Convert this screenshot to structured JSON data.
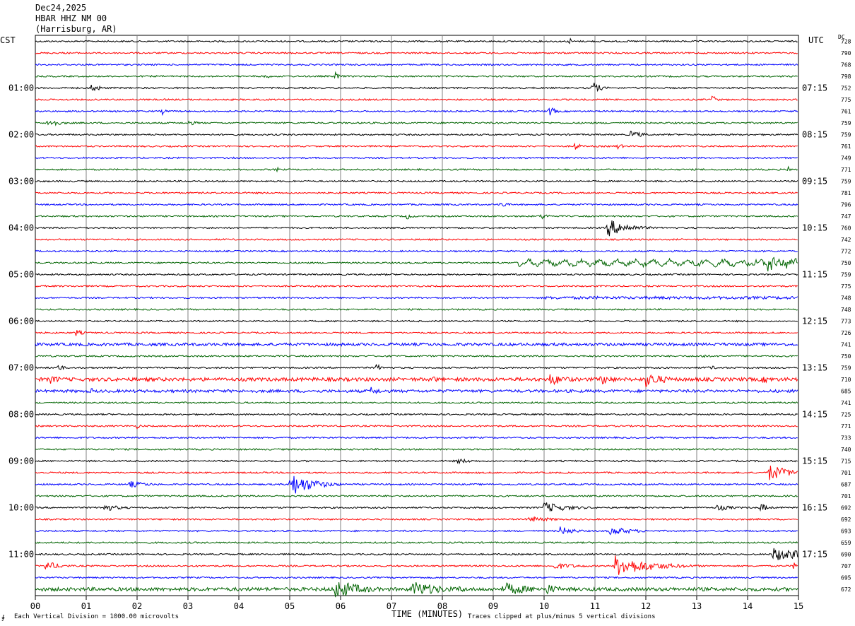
{
  "header": {
    "date": "Dec24,2025",
    "station": "HBAR HHZ NM 00",
    "location": "(Harrisburg, AR)"
  },
  "labels": {
    "left_tz": "CST",
    "right_tz": "UTC",
    "dc": "DC",
    "x_axis": "TIME (MINUTES)",
    "scale_note": "Each Vertical Division = 1000.00 microvolts",
    "clip_note": "Traces clipped at plus/minus 5 vertical divisions",
    "corner": "∳"
  },
  "colors": {
    "black": "#000000",
    "red": "#ff0000",
    "blue": "#0000ff",
    "green": "#006400",
    "grid": "#808080"
  },
  "chart_data": {
    "type": "line",
    "title": "HBAR HHZ NM 00",
    "xlabel": "TIME (MINUTES)",
    "xlim": [
      0,
      15
    ],
    "x_ticks": [
      "00",
      "01",
      "02",
      "03",
      "04",
      "05",
      "06",
      "07",
      "08",
      "09",
      "10",
      "11",
      "12",
      "13",
      "14",
      "15"
    ],
    "color_cycle": [
      "black",
      "red",
      "blue",
      "green"
    ],
    "left_hour_labels": [
      "01:00",
      "02:00",
      "03:00",
      "04:00",
      "05:00",
      "06:00",
      "07:00",
      "08:00",
      "09:00",
      "10:00",
      "11:00"
    ],
    "right_hour_labels": [
      "07:15",
      "08:15",
      "09:15",
      "10:15",
      "11:15",
      "12:15",
      "13:15",
      "14:15",
      "15:15",
      "16:15",
      "17:15"
    ],
    "dc_offsets": [
      728,
      790,
      768,
      798,
      752,
      775,
      761,
      759,
      759,
      761,
      749,
      771,
      759,
      781,
      796,
      747,
      760,
      742,
      772,
      750,
      759,
      775,
      748,
      748,
      773,
      726,
      741,
      750,
      759,
      710,
      685,
      741,
      725,
      771,
      733,
      740,
      715,
      701,
      687,
      701,
      692,
      692,
      693,
      659,
      690,
      707,
      695,
      672
    ],
    "events": [
      {
        "line": 0,
        "min": 10.5,
        "amp": 6,
        "dur": 0.05
      },
      {
        "line": 3,
        "min": 4.5,
        "amp": 5,
        "dur": 0.1
      },
      {
        "line": 3,
        "min": 5.9,
        "amp": 6,
        "dur": 0.1
      },
      {
        "line": 4,
        "min": 1.1,
        "amp": 8,
        "dur": 0.15
      },
      {
        "line": 4,
        "min": 10.95,
        "amp": 10,
        "dur": 0.15
      },
      {
        "line": 5,
        "min": 13.3,
        "amp": 7,
        "dur": 0.1
      },
      {
        "line": 6,
        "min": 2.5,
        "amp": 5,
        "dur": 0.08
      },
      {
        "line": 6,
        "min": 10.1,
        "amp": 9,
        "dur": 0.1
      },
      {
        "line": 7,
        "min": 0.25,
        "amp": 8,
        "dur": 0.2
      },
      {
        "line": 7,
        "min": 3.0,
        "amp": 4,
        "dur": 0.2
      },
      {
        "line": 8,
        "min": 11.7,
        "amp": 6,
        "dur": 0.25
      },
      {
        "line": 9,
        "min": 10.6,
        "amp": 7,
        "dur": 0.1
      },
      {
        "line": 9,
        "min": 11.45,
        "amp": 5,
        "dur": 0.1
      },
      {
        "line": 11,
        "min": 4.75,
        "amp": 4,
        "dur": 0.05
      },
      {
        "line": 11,
        "min": 14.8,
        "amp": 5,
        "dur": 0.05
      },
      {
        "line": 14,
        "min": 9.15,
        "amp": 7,
        "dur": 0.1
      },
      {
        "line": 15,
        "min": 7.3,
        "amp": 5,
        "dur": 0.1
      },
      {
        "line": 15,
        "min": 9.95,
        "amp": 5,
        "dur": 0.15
      },
      {
        "line": 16,
        "min": 11.25,
        "amp": 13,
        "dur": 0.4
      },
      {
        "line": 19,
        "min": 14.4,
        "amp": 10,
        "dur": 0.7
      },
      {
        "line": 25,
        "min": 0.8,
        "amp": 5,
        "dur": 0.15
      },
      {
        "line": 27,
        "min": 13.1,
        "amp": 4,
        "dur": 0.1
      },
      {
        "line": 28,
        "min": 0.45,
        "amp": 6,
        "dur": 0.1
      },
      {
        "line": 28,
        "min": 6.7,
        "amp": 6,
        "dur": 0.1
      },
      {
        "line": 28,
        "min": 13.25,
        "amp": 5,
        "dur": 0.1
      },
      {
        "line": 29,
        "min": 0.3,
        "amp": 6,
        "dur": 0.3
      },
      {
        "line": 29,
        "min": 7.8,
        "amp": 5,
        "dur": 0.2
      },
      {
        "line": 29,
        "min": 10.1,
        "amp": 9,
        "dur": 0.4
      },
      {
        "line": 29,
        "min": 11.1,
        "amp": 8,
        "dur": 0.3
      },
      {
        "line": 29,
        "min": 12.0,
        "amp": 11,
        "dur": 0.4
      },
      {
        "line": 29,
        "min": 14.3,
        "amp": 5,
        "dur": 0.4
      },
      {
        "line": 30,
        "min": 1.1,
        "amp": 5,
        "dur": 0.1
      },
      {
        "line": 30,
        "min": 6.6,
        "amp": 6,
        "dur": 0.2
      },
      {
        "line": 33,
        "min": 2.0,
        "amp": 4,
        "dur": 0.1
      },
      {
        "line": 36,
        "min": 8.3,
        "amp": 4,
        "dur": 0.3
      },
      {
        "line": 37,
        "min": 14.4,
        "amp": 13,
        "dur": 0.4
      },
      {
        "line": 38,
        "min": 1.85,
        "amp": 5,
        "dur": 0.4
      },
      {
        "line": 38,
        "min": 5.0,
        "amp": 17,
        "dur": 0.45
      },
      {
        "line": 40,
        "min": 1.35,
        "amp": 6,
        "dur": 0.3
      },
      {
        "line": 40,
        "min": 10.0,
        "amp": 8,
        "dur": 0.5
      },
      {
        "line": 40,
        "min": 13.4,
        "amp": 5,
        "dur": 0.3
      },
      {
        "line": 40,
        "min": 14.25,
        "amp": 7,
        "dur": 0.15
      },
      {
        "line": 41,
        "min": 9.7,
        "amp": 4,
        "dur": 0.6
      },
      {
        "line": 42,
        "min": 10.3,
        "amp": 7,
        "dur": 0.3
      },
      {
        "line": 42,
        "min": 11.3,
        "amp": 6,
        "dur": 0.5
      },
      {
        "line": 44,
        "min": 14.5,
        "amp": 10,
        "dur": 0.8
      },
      {
        "line": 45,
        "min": 0.2,
        "amp": 7,
        "dur": 0.3
      },
      {
        "line": 45,
        "min": 11.4,
        "amp": 15,
        "dur": 0.7
      },
      {
        "line": 45,
        "min": 10.2,
        "amp": 5,
        "dur": 0.5
      },
      {
        "line": 45,
        "min": 14.9,
        "amp": 5,
        "dur": 0.2
      },
      {
        "line": 47,
        "min": 5.9,
        "amp": 15,
        "dur": 0.5
      },
      {
        "line": 47,
        "min": 7.4,
        "amp": 12,
        "dur": 0.6
      },
      {
        "line": 47,
        "min": 9.2,
        "amp": 10,
        "dur": 0.6
      },
      {
        "line": 47,
        "min": 10.05,
        "amp": 8,
        "dur": 0.3
      },
      {
        "line": 47,
        "min": 8.3,
        "amp": 5,
        "dur": 0.3
      }
    ],
    "noise_lines": [
      {
        "line": 19,
        "amp": 3,
        "from": 9.5
      },
      {
        "line": 22,
        "amp": 2,
        "from": 10
      },
      {
        "line": 26,
        "amp": 2,
        "from": 0
      },
      {
        "line": 29,
        "amp": 2.5,
        "from": 0
      },
      {
        "line": 30,
        "amp": 2,
        "from": 0
      },
      {
        "line": 47,
        "amp": 2.5,
        "from": 0
      }
    ]
  }
}
